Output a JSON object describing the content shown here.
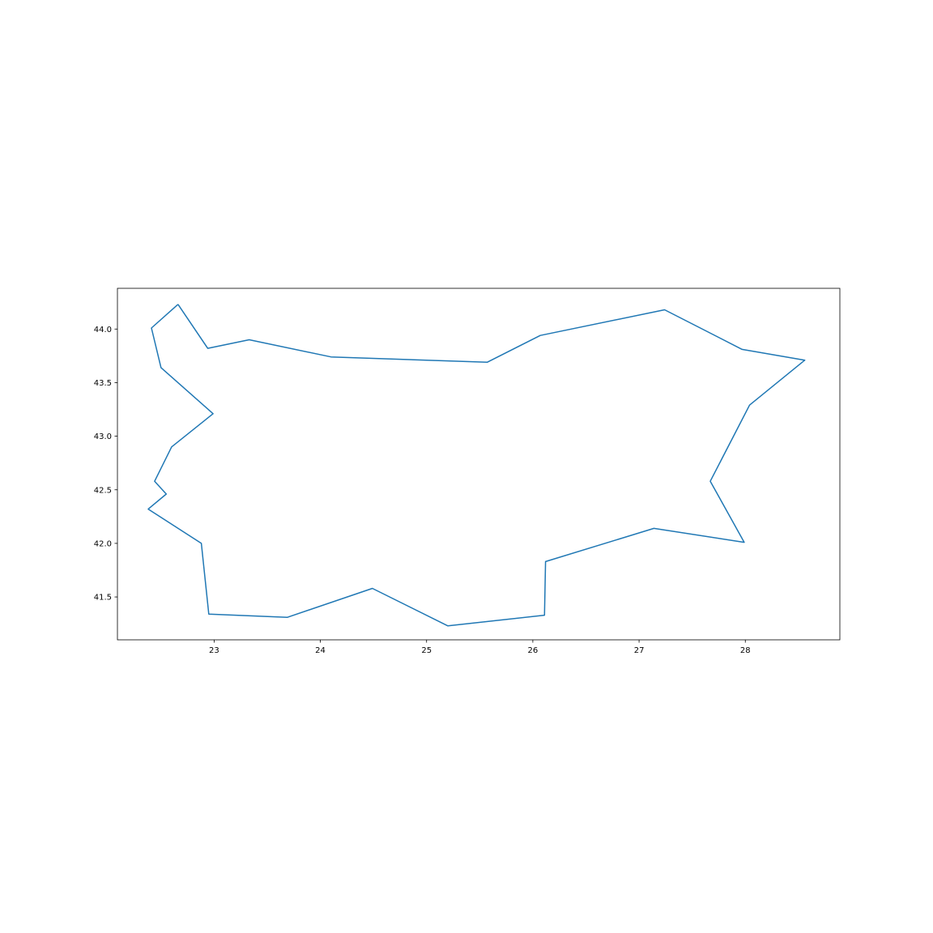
{
  "chart_data": {
    "type": "line",
    "title": "",
    "xlabel": "",
    "ylabel": "",
    "xlim": [
      22.09,
      28.89
    ],
    "ylim": [
      41.1,
      44.38
    ],
    "grid": false,
    "legend": "none",
    "x_ticks": [
      23,
      24,
      25,
      26,
      27,
      28
    ],
    "x_tick_labels": [
      "23",
      "24",
      "25",
      "26",
      "27",
      "28"
    ],
    "y_ticks": [
      41.5,
      42.0,
      42.5,
      43.0,
      43.5,
      44.0
    ],
    "y_tick_labels": [
      "41.5",
      "42.0",
      "42.5",
      "43.0",
      "43.5",
      "44.0"
    ],
    "series": [
      {
        "color": "#1f77b4",
        "points": [
          [
            22.66,
            44.23
          ],
          [
            22.94,
            43.82
          ],
          [
            23.33,
            43.9
          ],
          [
            24.1,
            43.74
          ],
          [
            25.57,
            43.69
          ],
          [
            26.07,
            43.94
          ],
          [
            27.24,
            44.18
          ],
          [
            27.97,
            43.81
          ],
          [
            28.56,
            43.71
          ],
          [
            28.04,
            43.29
          ],
          [
            27.67,
            42.58
          ],
          [
            27.99,
            42.01
          ],
          [
            27.14,
            42.14
          ],
          [
            26.12,
            41.83
          ],
          [
            26.11,
            41.33
          ],
          [
            25.2,
            41.23
          ],
          [
            24.49,
            41.58
          ],
          [
            23.69,
            41.31
          ],
          [
            22.95,
            41.34
          ],
          [
            22.88,
            42.0
          ],
          [
            22.38,
            42.32
          ],
          [
            22.55,
            42.46
          ],
          [
            22.44,
            42.58
          ],
          [
            22.6,
            42.9
          ],
          [
            22.99,
            43.21
          ],
          [
            22.5,
            43.64
          ],
          [
            22.41,
            44.01
          ],
          [
            22.66,
            44.23
          ]
        ]
      }
    ]
  }
}
